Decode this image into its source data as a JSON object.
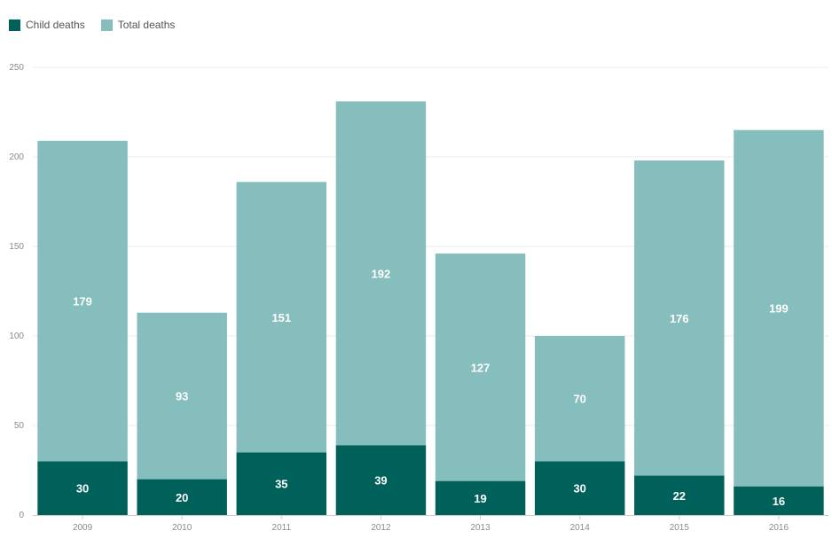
{
  "chart_data": {
    "type": "bar",
    "stacked": true,
    "categories": [
      "2009",
      "2010",
      "2011",
      "2012",
      "2013",
      "2014",
      "2015",
      "2016"
    ],
    "series": [
      {
        "name": "Child deaths",
        "color": "#00605a",
        "values": [
          30,
          20,
          35,
          39,
          19,
          30,
          22,
          16
        ]
      },
      {
        "name": "Total deaths",
        "color": "#85bebc",
        "values": [
          179,
          93,
          151,
          192,
          127,
          70,
          176,
          199
        ]
      }
    ],
    "y_ticks": [
      0,
      50,
      100,
      150,
      200,
      250
    ],
    "ylim": [
      0,
      250
    ],
    "grid": true,
    "legend_position": "top-left",
    "data_labels": true
  }
}
